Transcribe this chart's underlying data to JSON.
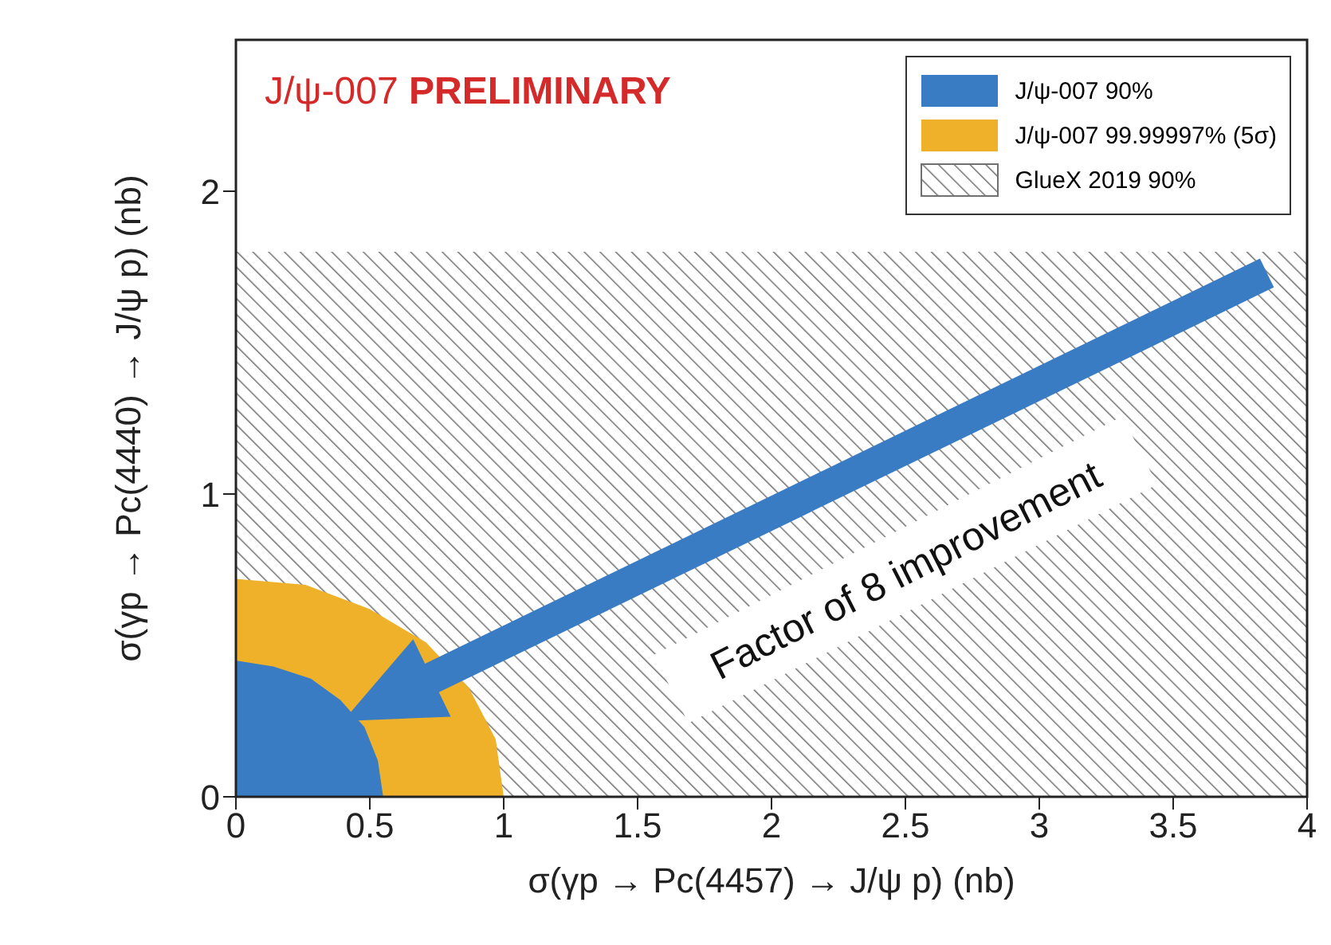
{
  "chart_data": {
    "type": "area",
    "title": "J/ψ-007 PRELIMINARY",
    "xlabel": "σ(γp → Pc(4457) → J/ψ p) (nb)",
    "ylabel": "σ(γp → Pc(4440) → J/ψ p) (nb)",
    "annotations": [
      "Factor of 8 improvement"
    ],
    "xlim": [
      0,
      4
    ],
    "xticks": [
      0,
      0.5,
      1,
      1.5,
      2,
      2.5,
      3,
      3.5,
      4
    ],
    "ylim": [
      0,
      2.5
    ],
    "yticks": [
      0,
      1,
      2
    ],
    "legend": "top right",
    "series": [
      {
        "name": "J/ψ-007 90%",
        "color": "#3a7cc4",
        "x": [
          0,
          0.14,
          0.28,
          0.39,
          0.48,
          0.53,
          0.55
        ],
        "values": [
          0.45,
          0.43,
          0.39,
          0.32,
          0.23,
          0.12,
          0
        ]
      },
      {
        "name": "J/ψ-007 99.99997% (5σ)",
        "color": "#f0b12a",
        "x": [
          0,
          0.26,
          0.5,
          0.71,
          0.87,
          0.97,
          1.0
        ],
        "values": [
          0.72,
          0.7,
          0.62,
          0.51,
          0.36,
          0.19,
          0
        ]
      },
      {
        "name": "GlueX 2019 90%",
        "color": "#707070",
        "x": [
          0,
          4
        ],
        "values": [
          1.8,
          1.8
        ]
      }
    ]
  }
}
